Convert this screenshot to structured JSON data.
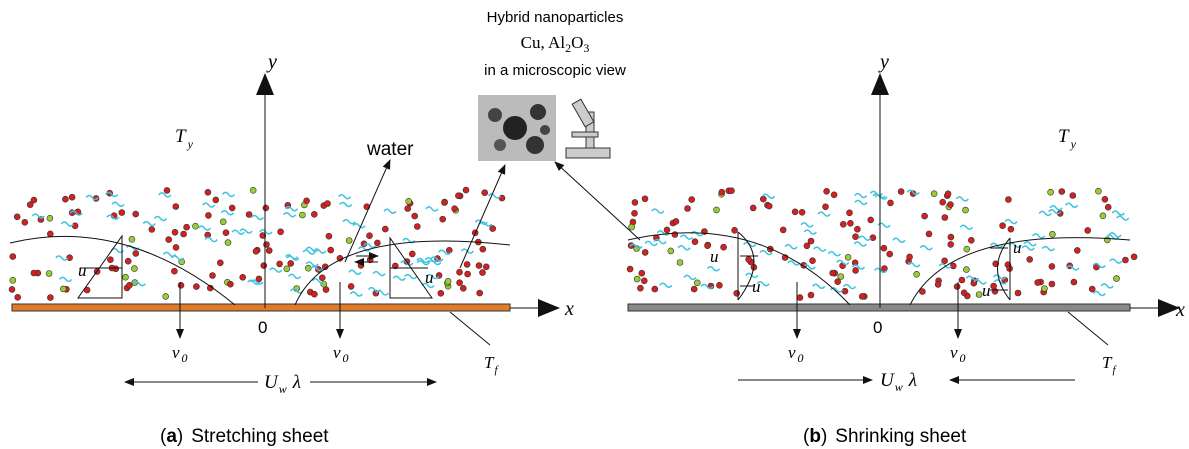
{
  "header": {
    "line1": "Hybrid nanoparticles",
    "line2": [
      "Cu, Al",
      "2",
      "O",
      "3"
    ],
    "line3": "in a microscopic view"
  },
  "panels": [
    {
      "axis_y": "y",
      "axis_x": "x",
      "origin": "0",
      "ambient": {
        "symbol": "T",
        "sub": "y"
      },
      "fluid": "water",
      "velocity": "u",
      "suction": {
        "symbol": "v",
        "sub": "0"
      },
      "wall_velocity": {
        "symbol": "U",
        "sub": "w"
      },
      "lambda": "λ",
      "wall_temp": {
        "symbol": "T",
        "sub": "f"
      },
      "caption": {
        "open": "(",
        "letter": "a",
        "close": ")",
        "text": "Stretching sheet"
      }
    },
    {
      "axis_y": "y",
      "axis_x": "x",
      "origin": "0",
      "ambient": {
        "symbol": "T",
        "sub": "y"
      },
      "velocity": "u",
      "suction": {
        "symbol": "v",
        "sub": "0"
      },
      "wall_velocity": {
        "symbol": "U",
        "sub": "w"
      },
      "lambda": "λ",
      "wall_temp": {
        "symbol": "T",
        "sub": "f"
      },
      "caption": {
        "open": "(",
        "letter": "b",
        "close": ")",
        "text": "Shrinking sheet"
      }
    }
  ]
}
